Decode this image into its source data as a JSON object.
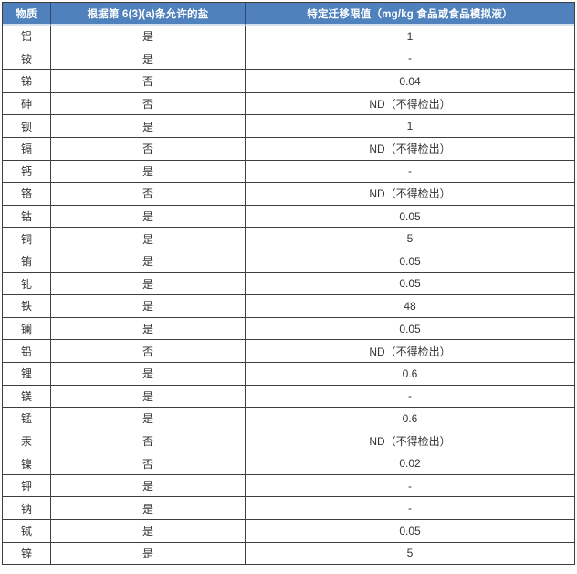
{
  "table": {
    "colors": {
      "header_bg": "#4f81bd",
      "header_text": "#ffffff",
      "border": "#3f3f3f",
      "body_text": "#333333"
    },
    "columns": [
      {
        "label": "物质"
      },
      {
        "label": "根据第 6(3)(a)条允许的盐"
      },
      {
        "label": "特定迁移限值（mg/kg 食品或食品模拟液）"
      }
    ],
    "rows": [
      {
        "substance": "铝",
        "permitted": "是",
        "sml": "1"
      },
      {
        "substance": "铵",
        "permitted": "是",
        "sml": "-"
      },
      {
        "substance": "锑",
        "permitted": "否",
        "sml": "0.04"
      },
      {
        "substance": "砷",
        "permitted": "否",
        "sml": "ND（不得检出）"
      },
      {
        "substance": "钡",
        "permitted": "是",
        "sml": "1"
      },
      {
        "substance": "镉",
        "permitted": "否",
        "sml": "ND（不得检出）"
      },
      {
        "substance": "钙",
        "permitted": "是",
        "sml": "-"
      },
      {
        "substance": "铬",
        "permitted": "否",
        "sml": "ND（不得检出）"
      },
      {
        "substance": "钴",
        "permitted": "是",
        "sml": "0.05"
      },
      {
        "substance": "铜",
        "permitted": "是",
        "sml": "5"
      },
      {
        "substance": "铕",
        "permitted": "是",
        "sml": "0.05"
      },
      {
        "substance": "钆",
        "permitted": "是",
        "sml": "0.05"
      },
      {
        "substance": "铁",
        "permitted": "是",
        "sml": "48"
      },
      {
        "substance": "镧",
        "permitted": "是",
        "sml": "0.05"
      },
      {
        "substance": "铅",
        "permitted": "否",
        "sml": "ND（不得检出）"
      },
      {
        "substance": "锂",
        "permitted": "是",
        "sml": "0.6"
      },
      {
        "substance": "镁",
        "permitted": "是",
        "sml": "-"
      },
      {
        "substance": "锰",
        "permitted": "是",
        "sml": "0.6"
      },
      {
        "substance": "汞",
        "permitted": "否",
        "sml": "ND（不得检出）"
      },
      {
        "substance": "镍",
        "permitted": "否",
        "sml": "0.02"
      },
      {
        "substance": "钾",
        "permitted": "是",
        "sml": "-"
      },
      {
        "substance": "钠",
        "permitted": "是",
        "sml": "-"
      },
      {
        "substance": "铽",
        "permitted": "是",
        "sml": "0.05"
      },
      {
        "substance": "锌",
        "permitted": "是",
        "sml": "5"
      }
    ]
  }
}
